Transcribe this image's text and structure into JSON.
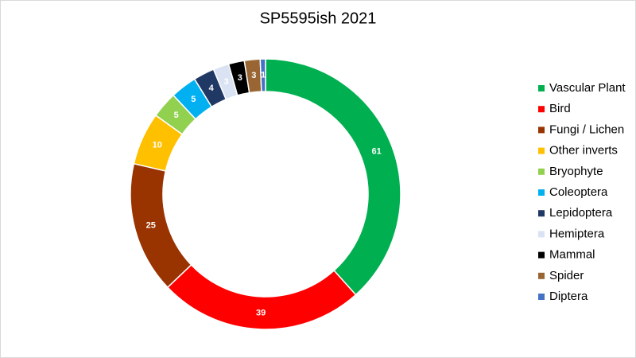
{
  "chart_data": {
    "type": "doughnut",
    "title": "SP5595ish 2021",
    "categories": [
      "Vascular Plant",
      "Bird",
      "Fungi / Lichen",
      "Other inverts",
      "Bryophyte",
      "Coleoptera",
      "Lepidoptera",
      "Hemiptera",
      "Mammal",
      "Spider",
      "Diptera"
    ],
    "values": [
      61,
      39,
      25,
      10,
      5,
      5,
      4,
      3,
      3,
      3,
      1
    ],
    "colors": [
      "#00b050",
      "#ff0000",
      "#993300",
      "#ffc000",
      "#92d050",
      "#00b0f0",
      "#203864",
      "#dae3f3",
      "#000000",
      "#996633",
      "#4472c4"
    ],
    "legend": "right"
  }
}
